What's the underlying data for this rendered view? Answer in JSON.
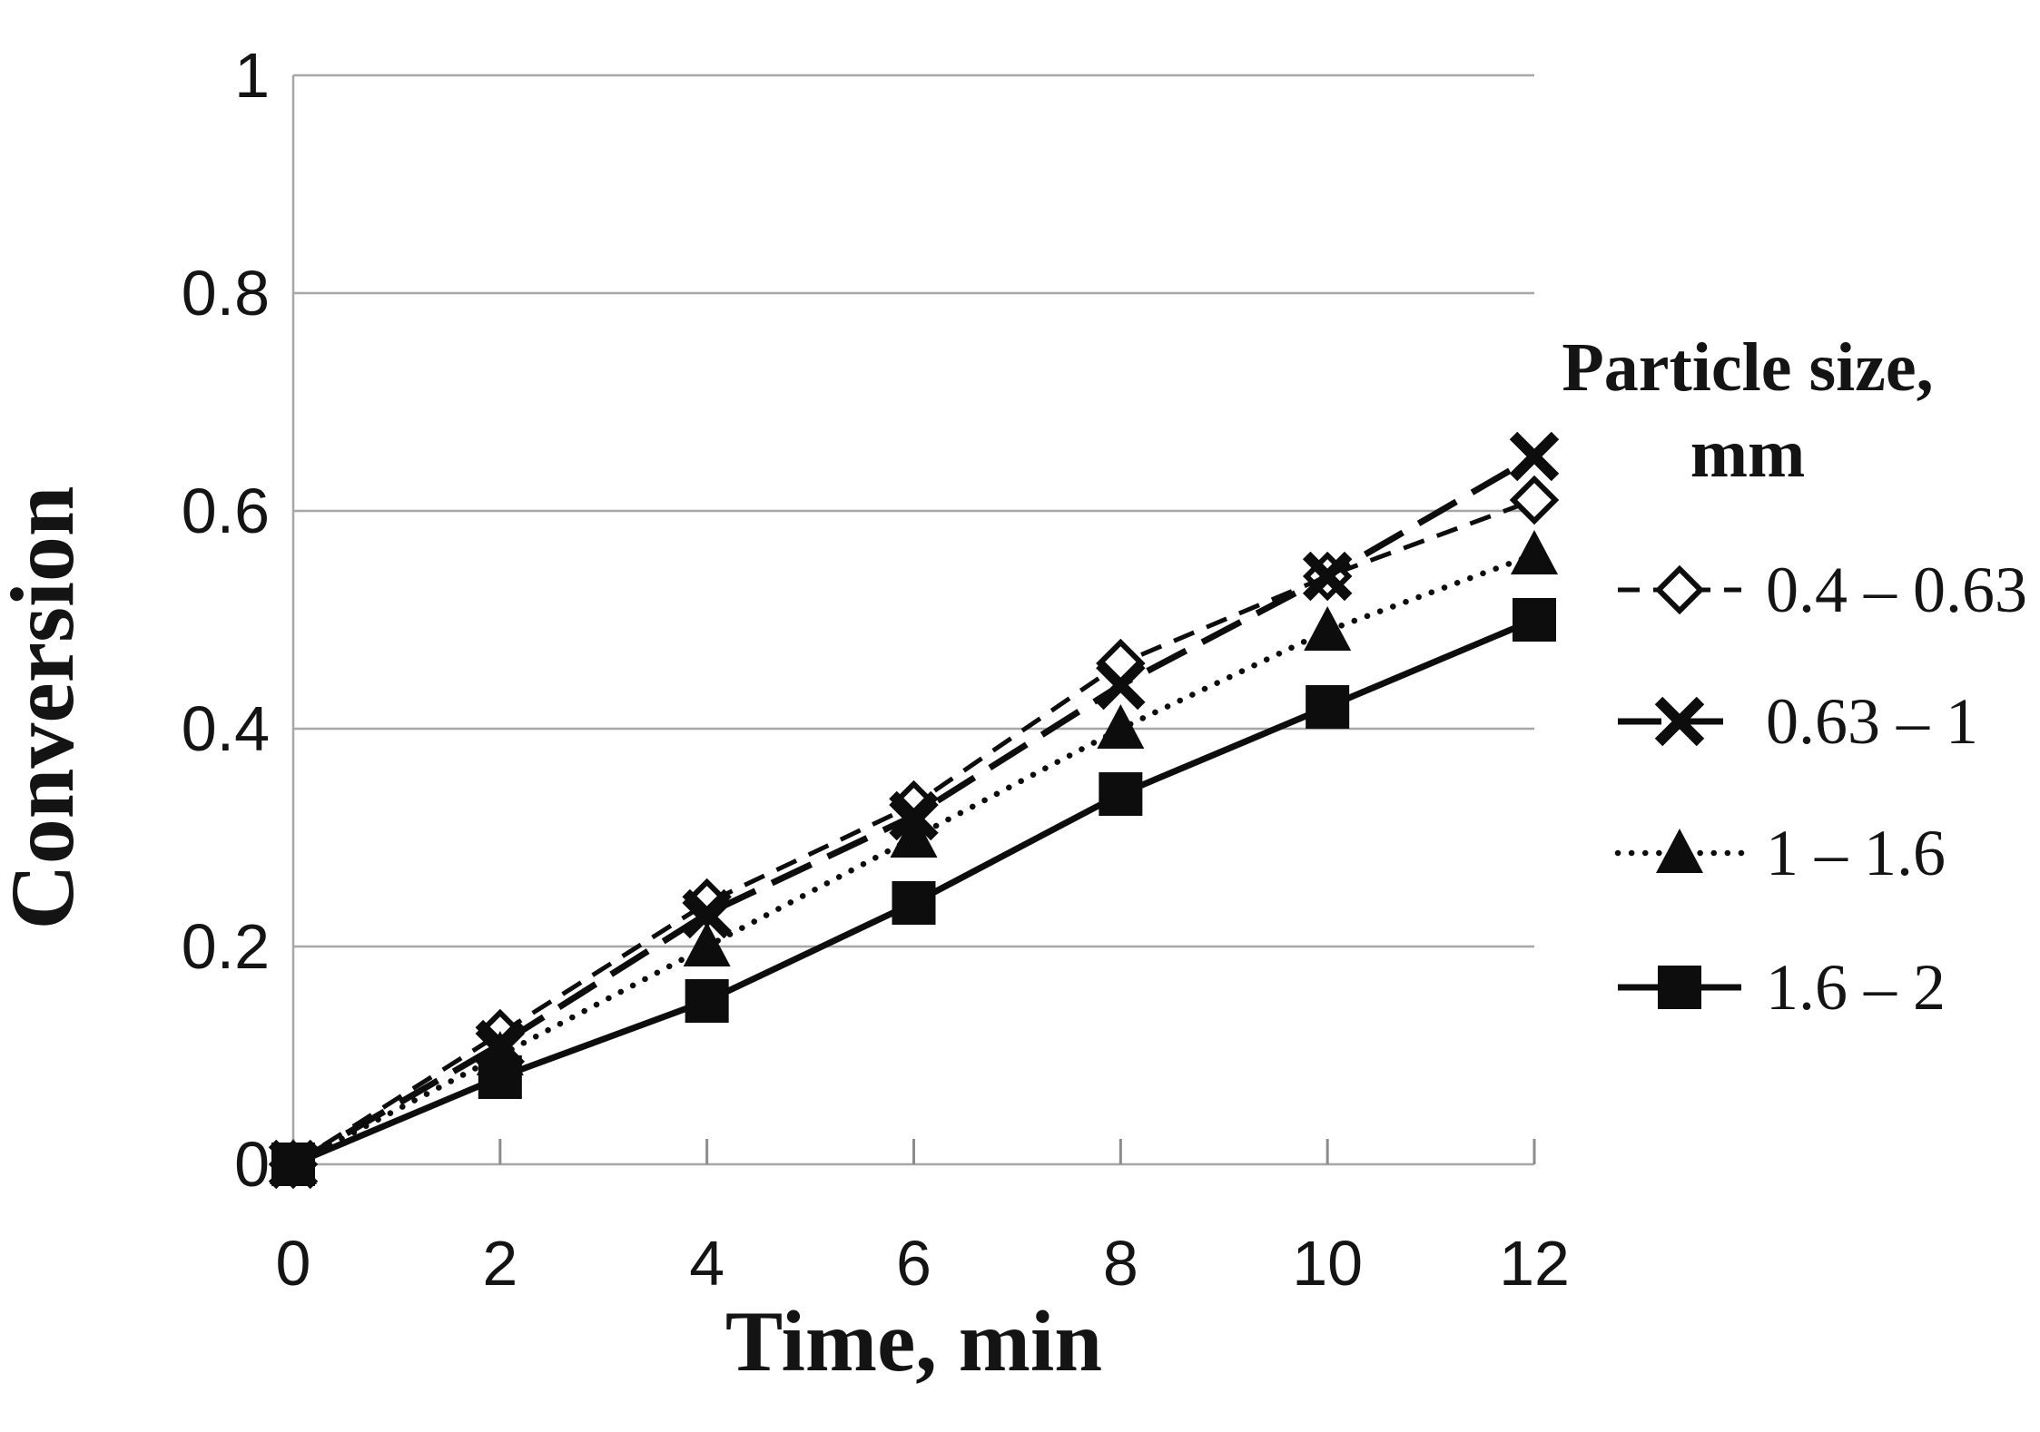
{
  "chart_data": {
    "type": "line",
    "title": "",
    "xlabel": "Time, min",
    "ylabel": "Conversion",
    "legend_title_line1": "Particle size,",
    "legend_title_line2": "mm",
    "legend_position": "right",
    "grid": "horizontal",
    "xlim": [
      0,
      12
    ],
    "ylim": [
      0,
      1
    ],
    "x": [
      0,
      2,
      4,
      6,
      8,
      10,
      12
    ],
    "xtick_labels": [
      "0",
      "2",
      "4",
      "6",
      "8",
      "10",
      "12"
    ],
    "yticks": [
      0,
      0.2,
      0.4,
      0.6,
      0.8,
      1
    ],
    "ytick_labels": [
      "0",
      "0.2",
      "0.4",
      "0.6",
      "0.8",
      "1"
    ],
    "series": [
      {
        "name": "0.4 – 0.63",
        "marker": "open-diamond",
        "line_style": "dashed",
        "values": [
          0,
          0.12,
          0.24,
          0.33,
          0.46,
          0.54,
          0.61
        ]
      },
      {
        "name": "0.63 – 1",
        "marker": "x-cross",
        "line_style": "long-dash",
        "values": [
          0,
          0.11,
          0.23,
          0.32,
          0.44,
          0.54,
          0.65
        ]
      },
      {
        "name": "1 – 1.6",
        "marker": "filled-triangle",
        "line_style": "dotted",
        "values": [
          0,
          0.1,
          0.2,
          0.3,
          0.4,
          0.49,
          0.56
        ]
      },
      {
        "name": "1.6 – 2",
        "marker": "filled-square",
        "line_style": "solid",
        "values": [
          0,
          0.08,
          0.15,
          0.24,
          0.34,
          0.42,
          0.5
        ]
      }
    ],
    "colors": {
      "series": "#0d0d0d",
      "grid": "#a6a6a6",
      "tick": "#8c8c8c",
      "text": "#141414",
      "background": "#ffffff"
    }
  }
}
